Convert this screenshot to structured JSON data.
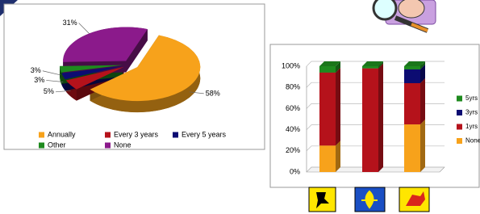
{
  "chart_data": [
    {
      "type": "pie",
      "categories": [
        "Annually",
        "Every 3 years",
        "Every 5 years",
        "Other",
        "None"
      ],
      "values": [
        58,
        5,
        3,
        3,
        31
      ],
      "value_labels": [
        "58%",
        "5%",
        "3%",
        "3%",
        "31%"
      ],
      "colors": [
        "#f7a21b",
        "#b5121b",
        "#0c0c72",
        "#1e8a1e",
        "#8b1a8b"
      ],
      "legend": "bottom"
    },
    {
      "type": "bar",
      "stacked": true,
      "categories": [
        null,
        null,
        null
      ],
      "series": [
        {
          "name": "None",
          "color": "#f7a21b",
          "values": [
            25,
            0,
            45
          ]
        },
        {
          "name": "1yrs",
          "color": "#b5121b",
          "values": [
            69,
            98,
            39
          ]
        },
        {
          "name": "3yrs",
          "color": "#0c0c72",
          "values": [
            0,
            0,
            13
          ]
        },
        {
          "name": "5yrs",
          "color": "#1e8a1e",
          "values": [
            6,
            2,
            3
          ]
        }
      ],
      "ylim": [
        0,
        100
      ],
      "yticks": [
        {
          "value": 0,
          "label": "0%"
        },
        {
          "value": 20,
          "label": "20%"
        },
        {
          "value": 40,
          "label": "40%"
        },
        {
          "value": 60,
          "label": "60%"
        },
        {
          "value": 80,
          "label": "80%"
        },
        {
          "value": 100,
          "label": "100%"
        }
      ],
      "grid": true,
      "legend": "right"
    }
  ]
}
